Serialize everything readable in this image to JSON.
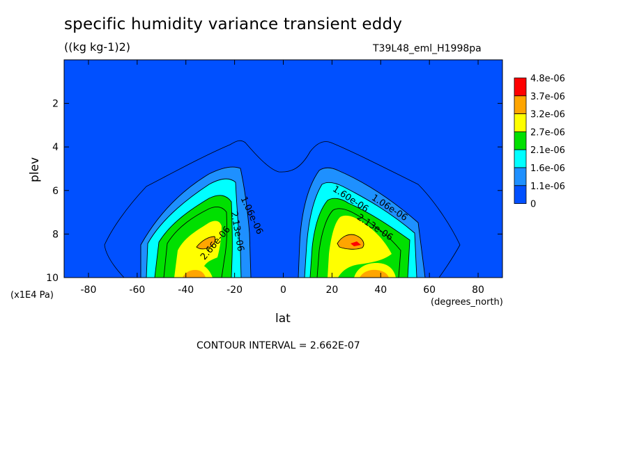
{
  "title": "specific humidity variance transient eddy",
  "units": "((kg kg-1)2)",
  "experiment": "T39L48_eml_H1998pa",
  "contour_interval": "CONTOUR INTERVAL = 2.662E-07",
  "chart_data": {
    "type": "heatmap",
    "title": "specific humidity variance transient eddy",
    "subtitle": "((kg kg-1)2)",
    "xlabel": "lat",
    "x_units": "(degrees_north)",
    "ylabel": "plev",
    "y_units": "(x1E4 Pa)",
    "xlim": [
      -90,
      90
    ],
    "ylim": [
      10,
      0
    ],
    "y_inverted": true,
    "x_ticks": [
      -80,
      -60,
      -40,
      -20,
      0,
      20,
      40,
      60,
      80
    ],
    "y_ticks": [
      2,
      4,
      6,
      8,
      10
    ],
    "colorbar": {
      "labels": [
        "4.8e-06",
        "3.7e-06",
        "3.2e-06",
        "2.7e-06",
        "2.1e-06",
        "1.6e-06",
        "1.1e-06",
        "0"
      ],
      "colors": [
        "#ff0000",
        "#ffa500",
        "#ffff00",
        "#00e000",
        "#00ffff",
        "#1e90ff",
        "#0050ff"
      ]
    },
    "background_color": "#0050ff",
    "regions": [
      {
        "hemisphere": "south",
        "max_lat": -28,
        "max_plev": 8.5,
        "peak_value": "~3.7e-06",
        "near_surface_max_lat": -37
      },
      {
        "hemisphere": "north",
        "max_lat": 27,
        "max_plev": 8.5,
        "peak_value": "~3.7e-06",
        "near_surface_max_lat": 37
      }
    ],
    "contour_labels": [
      {
        "text": "1.06e-06",
        "lat": -14,
        "plev": 7.2,
        "angle": 65
      },
      {
        "text": "2.13e-06",
        "lat": -20,
        "plev": 7.9,
        "angle": 80
      },
      {
        "text": "2.66e-06",
        "lat": -27,
        "plev": 8.5,
        "angle": -50
      },
      {
        "text": "1.60e-06",
        "lat": 27,
        "plev": 6.5,
        "angle": 33
      },
      {
        "text": "1.06e-06",
        "lat": 43,
        "plev": 6.9,
        "angle": 33
      },
      {
        "text": "2.13e-06",
        "lat": 37,
        "plev": 7.8,
        "angle": 33
      }
    ]
  }
}
